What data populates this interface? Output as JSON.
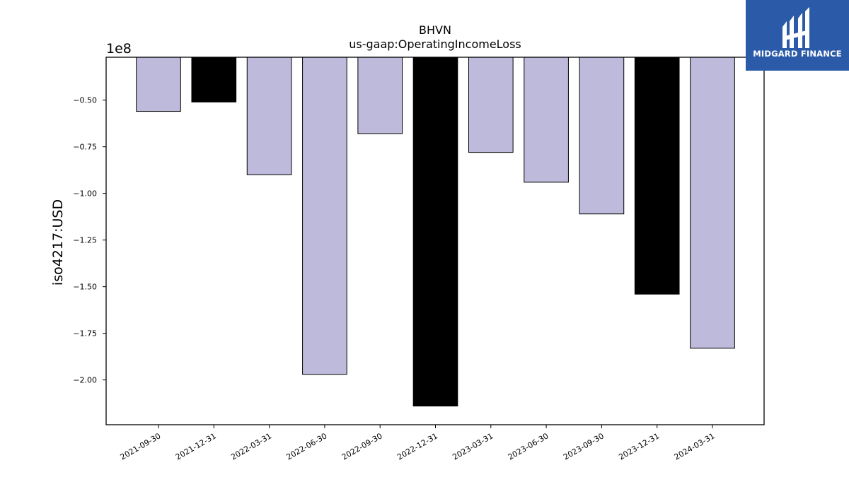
{
  "chart_data": {
    "type": "bar",
    "title": "BHVN",
    "subtitle": "us-gaap:OperatingIncomeLoss",
    "ylabel": "iso4217:USD",
    "xlabel": "",
    "offset_label": "1e8",
    "scale": 100000000,
    "ylim": [
      -2.24,
      -0.27
    ],
    "yticks": [
      -0.5,
      -0.75,
      -1.0,
      -1.25,
      -1.5,
      -1.75,
      -2.0
    ],
    "ytick_labels": [
      "−0.50",
      "−0.75",
      "−1.00",
      "−1.25",
      "−1.50",
      "−1.75",
      "−2.00"
    ],
    "categories": [
      "2021-09-30",
      "2021-12-31",
      "2022-03-31",
      "2022-06-30",
      "2022-09-30",
      "2022-12-31",
      "2023-03-31",
      "2023-06-30",
      "2023-09-30",
      "2023-12-31",
      "2024-03-31"
    ],
    "values": [
      -0.56,
      -0.51,
      -0.9,
      -1.97,
      -0.68,
      -2.14,
      -0.78,
      -0.94,
      -1.11,
      -1.54,
      -1.83
    ],
    "bar_colors": [
      "#bebadb",
      "#000000",
      "#bebadb",
      "#bebadb",
      "#bebadb",
      "#000000",
      "#bebadb",
      "#bebadb",
      "#bebadb",
      "#000000",
      "#bebadb"
    ],
    "grid": false
  },
  "logo": {
    "text": "MIDGARD FINANCE",
    "background": "#2b5aa8"
  }
}
